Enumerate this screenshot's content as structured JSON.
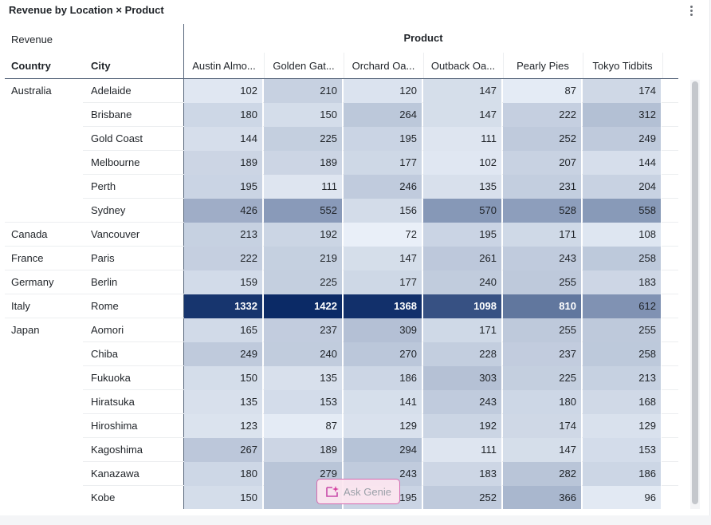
{
  "header": {
    "title": "Revenue by Location × Product",
    "menu_icon": "kebab-menu-icon"
  },
  "pivot": {
    "measure_label": "Revenue",
    "column_group_label": "Product",
    "row_headers": [
      "Country",
      "City"
    ],
    "columns": [
      "Austin Almo...",
      "Golden Gat...",
      "Orchard Oa...",
      "Outback Oa...",
      "Pearly Pies",
      "Tokyo Tidbits"
    ],
    "rows": [
      {
        "country": "Australia",
        "city": "Adelaide",
        "values": [
          102,
          210,
          120,
          147,
          87,
          174
        ]
      },
      {
        "country": "",
        "city": "Brisbane",
        "values": [
          180,
          150,
          264,
          147,
          222,
          312
        ]
      },
      {
        "country": "",
        "city": "Gold Coast",
        "values": [
          144,
          225,
          195,
          111,
          252,
          249
        ]
      },
      {
        "country": "",
        "city": "Melbourne",
        "values": [
          189,
          189,
          177,
          102,
          207,
          144
        ]
      },
      {
        "country": "",
        "city": "Perth",
        "values": [
          195,
          111,
          246,
          135,
          231,
          204
        ]
      },
      {
        "country": "",
        "city": "Sydney",
        "values": [
          426,
          552,
          156,
          570,
          528,
          558
        ]
      },
      {
        "country": "Canada",
        "city": "Vancouver",
        "values": [
          213,
          192,
          72,
          195,
          171,
          108
        ]
      },
      {
        "country": "France",
        "city": "Paris",
        "values": [
          222,
          219,
          147,
          261,
          243,
          258
        ]
      },
      {
        "country": "Germany",
        "city": "Berlin",
        "values": [
          159,
          225,
          177,
          240,
          255,
          183
        ]
      },
      {
        "country": "Italy",
        "city": "Rome",
        "values": [
          1332,
          1422,
          1368,
          1098,
          810,
          612
        ]
      },
      {
        "country": "Japan",
        "city": "Aomori",
        "values": [
          165,
          237,
          309,
          171,
          255,
          255
        ]
      },
      {
        "country": "",
        "city": "Chiba",
        "values": [
          249,
          240,
          270,
          228,
          237,
          258
        ]
      },
      {
        "country": "",
        "city": "Fukuoka",
        "values": [
          150,
          135,
          186,
          303,
          225,
          213
        ]
      },
      {
        "country": "",
        "city": "Hiratsuka",
        "values": [
          135,
          153,
          141,
          243,
          180,
          168
        ]
      },
      {
        "country": "",
        "city": "Hiroshima",
        "values": [
          123,
          87,
          129,
          192,
          174,
          129
        ]
      },
      {
        "country": "",
        "city": "Kagoshima",
        "values": [
          267,
          189,
          294,
          111,
          147,
          153
        ]
      },
      {
        "country": "",
        "city": "Kanazawa",
        "values": [
          180,
          279,
          243,
          183,
          282,
          186
        ]
      },
      {
        "country": "",
        "city": "Kobe",
        "values": [
          150,
          0,
          195,
          252,
          366,
          96
        ]
      }
    ],
    "heat_color_low": "#eef4fb",
    "heat_color_high": "#0b2a66"
  },
  "genie": {
    "label": "Ask Genie",
    "icon": "genie-sparkle-icon",
    "accent": "#d63fa0"
  }
}
